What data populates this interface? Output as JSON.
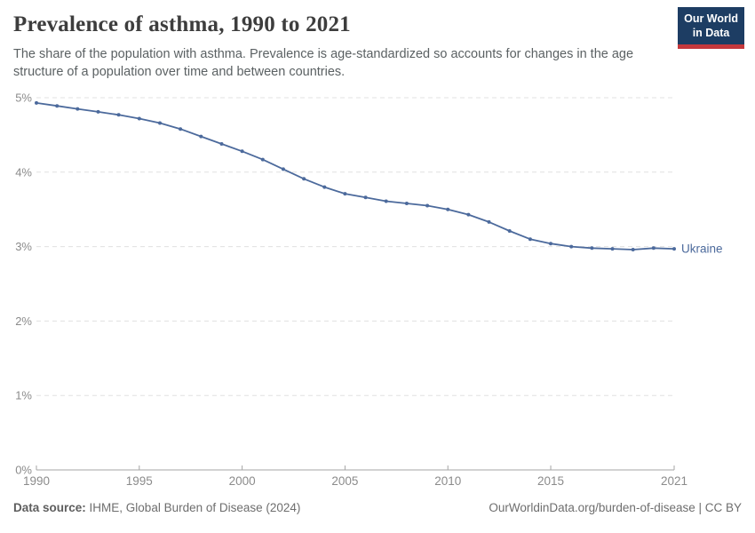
{
  "header": {
    "title": "Prevalence of asthma, 1990 to 2021",
    "subtitle": "The share of the population with asthma. Prevalence is age-standardized so accounts for changes in the age structure of a population over time and between countries.",
    "logo_line1": "Our World",
    "logo_line2": "in Data"
  },
  "chart_data": {
    "type": "line",
    "title": "Prevalence of asthma, 1990 to 2021",
    "x": [
      1990,
      1991,
      1992,
      1993,
      1994,
      1995,
      1996,
      1997,
      1998,
      1999,
      2000,
      2001,
      2002,
      2003,
      2004,
      2005,
      2006,
      2007,
      2008,
      2009,
      2010,
      2011,
      2012,
      2013,
      2014,
      2015,
      2016,
      2017,
      2018,
      2019,
      2020,
      2021
    ],
    "series": [
      {
        "name": "Ukraine",
        "color": "#4C6A9C",
        "values": [
          4.93,
          4.89,
          4.85,
          4.81,
          4.77,
          4.72,
          4.66,
          4.58,
          4.48,
          4.38,
          4.28,
          4.17,
          4.04,
          3.91,
          3.8,
          3.71,
          3.66,
          3.61,
          3.58,
          3.55,
          3.5,
          3.43,
          3.33,
          3.21,
          3.1,
          3.04,
          3.0,
          2.98,
          2.97,
          2.96,
          2.98,
          2.97
        ]
      }
    ],
    "xlim": [
      1990,
      2021
    ],
    "ylim": [
      0,
      5
    ],
    "x_ticks": [
      1990,
      1995,
      2000,
      2005,
      2010,
      2015,
      2021
    ],
    "y_ticks": [
      0,
      1,
      2,
      3,
      4,
      5
    ],
    "y_tick_suffix": "%",
    "xlabel": "",
    "ylabel": "",
    "grid": "horizontal-dashed",
    "legend": "line-end-label"
  },
  "footer": {
    "source_label": "Data source:",
    "source_text": "IHME, Global Burden of Disease (2024)",
    "credit_text": "OurWorldinData.org/burden-of-disease | CC BY"
  },
  "colors": {
    "series": "#4C6A9C",
    "grid": "#e0e0e0",
    "axis": "#a5a5a5",
    "tick_label": "#8b8b8b",
    "logo_bg": "#1d3d63",
    "logo_accent": "#c5383c"
  }
}
